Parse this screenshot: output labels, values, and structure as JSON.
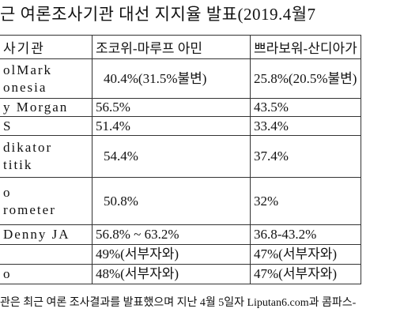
{
  "title": "근 여론조사기관 대선 지지율 발표(2019.4월7",
  "table": {
    "header": [
      "사기관",
      "조코위-마루프 아민",
      "쁘라보워-산디아가"
    ],
    "rows": [
      [
        [
          "olMark",
          "onesia"
        ],
        [
          "40.4%(31.5%불변)"
        ],
        [
          "25.8%(20.5%불변)"
        ]
      ],
      [
        [
          "y Morgan"
        ],
        [
          "56.5%"
        ],
        [
          "43.5%"
        ]
      ],
      [
        [
          "S"
        ],
        [
          "51.4%"
        ],
        [
          "33.4%"
        ]
      ],
      [
        [
          "dikator",
          "titik"
        ],
        [
          "54.4%"
        ],
        [
          "37.4%"
        ]
      ],
      [
        [
          "o",
          "rometer"
        ],
        [
          "50.8%"
        ],
        [
          "32%"
        ]
      ],
      [
        [
          "Denny JA"
        ],
        [
          "56.8% ~ 63.2%"
        ],
        [
          "36.8-43.2%"
        ]
      ],
      [
        null,
        [
          "49%(서부자와)"
        ],
        [
          "47%(서부자와)"
        ]
      ],
      [
        [
          "o"
        ],
        [
          "48%(서부자와)"
        ],
        [
          "47%(서부자와)"
        ]
      ]
    ]
  },
  "footer": "관은 최근 여론 조사결과를 발표했으며 지난 4월 5일자 Liputan6.com과 콤파스-"
}
